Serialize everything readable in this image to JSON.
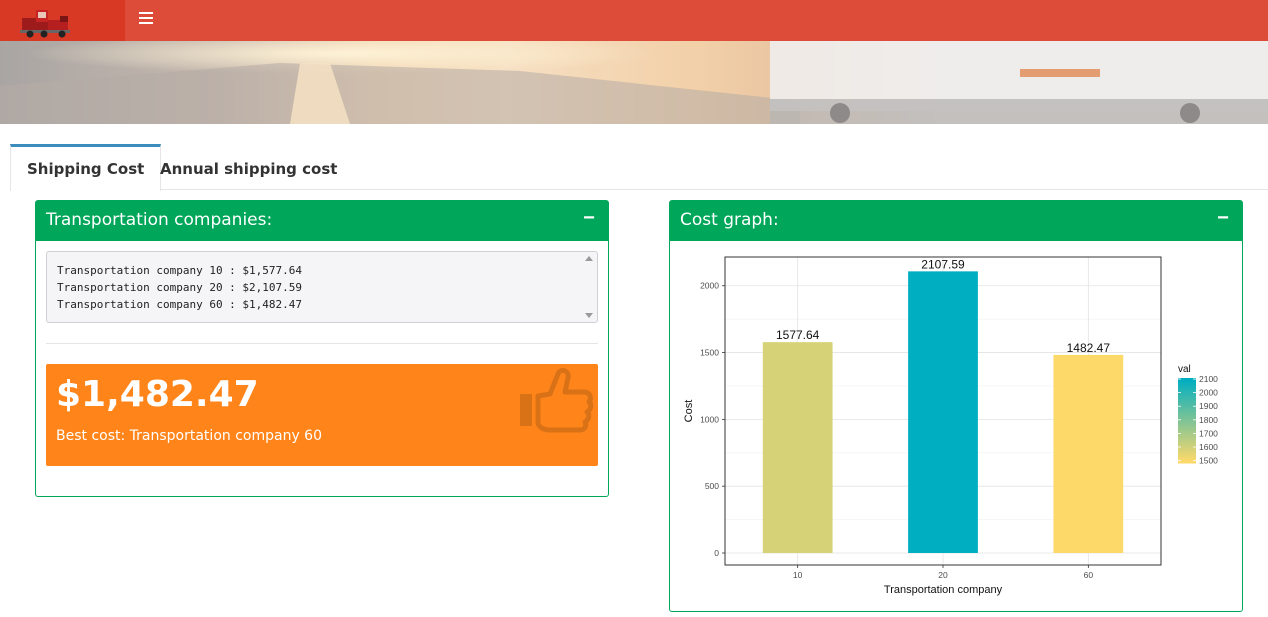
{
  "app": {
    "menu_icon": "bars-icon",
    "logo_icon": "truck-icon"
  },
  "tabs": [
    {
      "label": "Shipping Cost",
      "active": true
    },
    {
      "label": "Annual shipping cost",
      "active": false
    }
  ],
  "companies_box": {
    "title": "Transportation companies:",
    "collapse_symbol": "−",
    "lines": [
      "Transportation company 10 : $1,577.64",
      "Transportation company 20 : $2,107.59",
      "Transportation company 60 : $1,482.47"
    ],
    "best": {
      "value": "$1,482.47",
      "subtitle": "Best cost: Transportation company 60",
      "icon": "thumbs-up-icon",
      "color": "#ff851b"
    }
  },
  "graph_box": {
    "title": "Cost graph:",
    "collapse_symbol": "−"
  },
  "colors": {
    "header": "#dd4b39",
    "box": "#00a65a",
    "tab_accent": "#3c8dbc"
  },
  "chart_data": {
    "type": "bar",
    "categories": [
      "10",
      "20",
      "60"
    ],
    "values": [
      1577.64,
      2107.59,
      1482.47
    ],
    "data_labels": [
      "1577.64",
      "2107.59",
      "1482.47"
    ],
    "xlabel": "Transportation company",
    "ylabel": "Cost",
    "ylim": [
      0,
      2215
    ],
    "yticks": [
      0,
      500,
      1000,
      1500,
      2000
    ],
    "grid": true,
    "legend": {
      "title": "val",
      "position": "right",
      "ticks": [
        1500,
        1600,
        1700,
        1800,
        1900,
        2000,
        2100
      ],
      "color_low": "#fdd96a",
      "color_high": "#00aec1",
      "range": [
        1482.47,
        2107.59
      ]
    }
  }
}
